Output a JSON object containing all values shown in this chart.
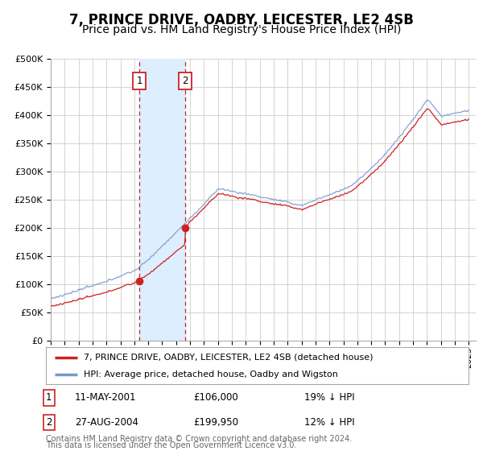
{
  "title": "7, PRINCE DRIVE, OADBY, LEICESTER, LE2 4SB",
  "subtitle": "Price paid vs. HM Land Registry's House Price Index (HPI)",
  "title_fontsize": 12,
  "subtitle_fontsize": 10,
  "ylim": [
    0,
    500000
  ],
  "yticks": [
    0,
    50000,
    100000,
    150000,
    200000,
    250000,
    300000,
    350000,
    400000,
    450000,
    500000
  ],
  "ytick_labels": [
    "£0",
    "£50K",
    "£100K",
    "£150K",
    "£200K",
    "£250K",
    "£300K",
    "£350K",
    "£400K",
    "£450K",
    "£500K"
  ],
  "background_color": "#ffffff",
  "plot_bg_color": "#ffffff",
  "grid_color": "#cccccc",
  "red_line_color": "#cc2222",
  "blue_line_color": "#7799cc",
  "shade_color": "#ddeeff",
  "dashed_color": "#cc2222",
  "marker1_price": 106000,
  "marker2_price": 199950,
  "marker1_date_str": "11-MAY-2001",
  "marker2_date_str": "27-AUG-2004",
  "marker1_label": "19% ↓ HPI",
  "marker2_label": "12% ↓ HPI",
  "purchase1_x": 2001.36,
  "purchase2_x": 2004.65,
  "legend_label_red": "7, PRINCE DRIVE, OADBY, LEICESTER, LE2 4SB (detached house)",
  "legend_label_blue": "HPI: Average price, detached house, Oadby and Wigston",
  "footer1": "Contains HM Land Registry data © Crown copyright and database right 2024.",
  "footer2": "This data is licensed under the Open Government Licence v3.0.",
  "xmin": 1995,
  "xmax": 2025.5
}
